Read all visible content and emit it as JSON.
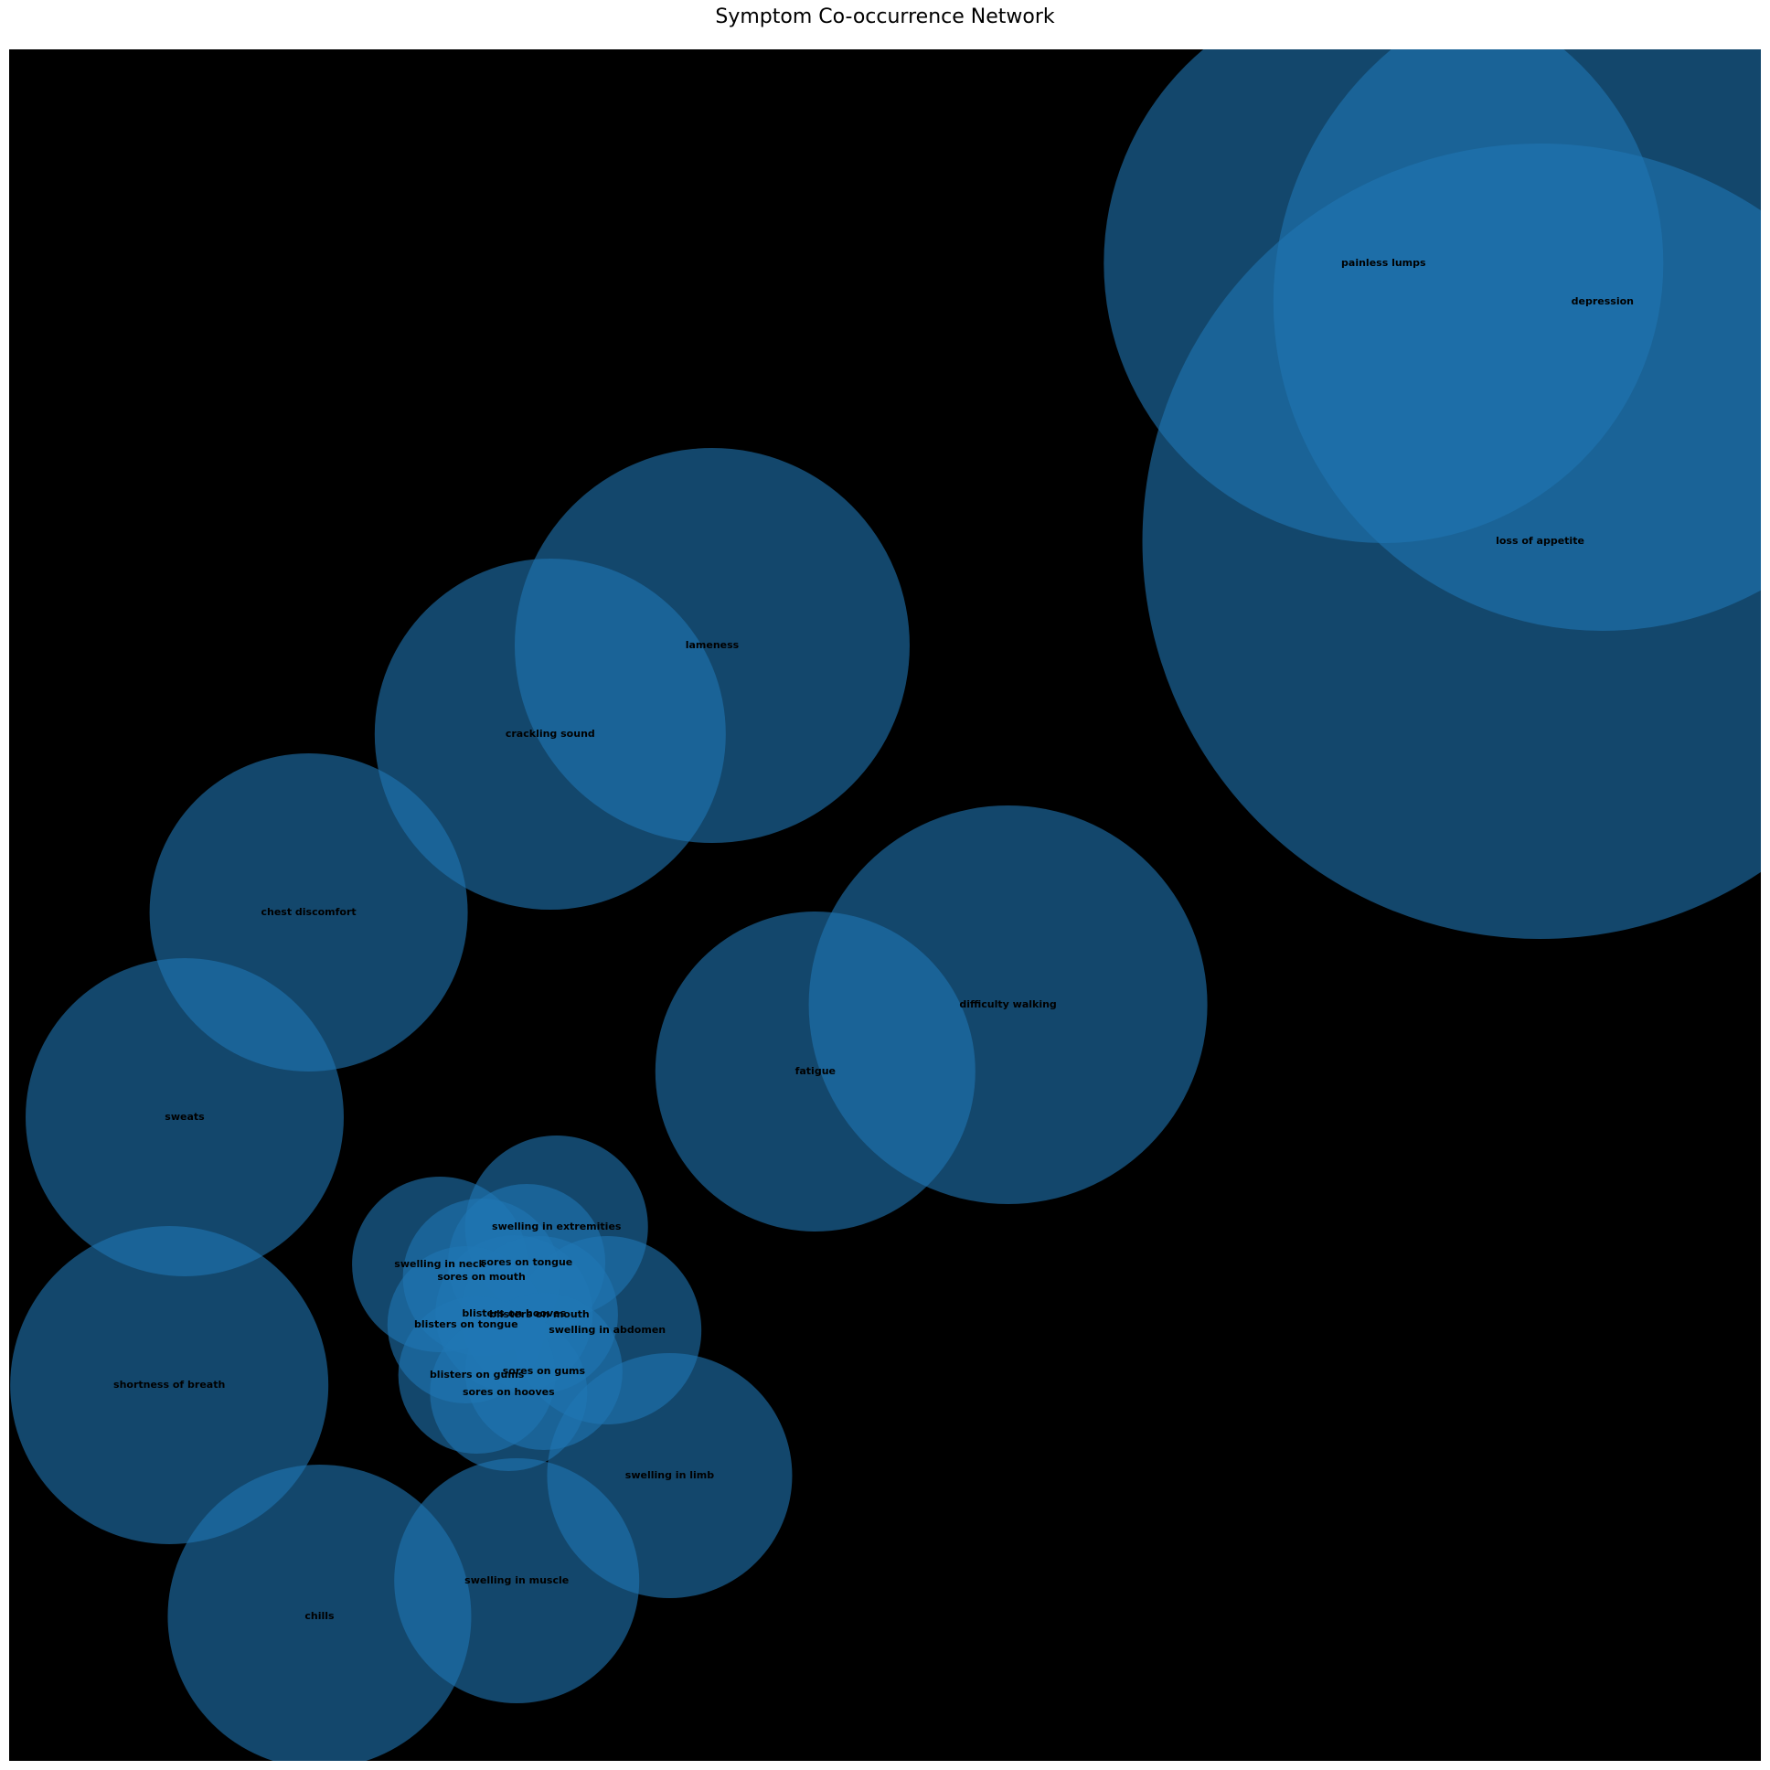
{
  "chart_data": {
    "type": "scatter",
    "title": "Symptom Co-occurrence Network",
    "xlabel": "",
    "ylabel": "",
    "xlim": [
      0,
      1936
    ],
    "ylim": [
      1926,
      54
    ],
    "axes_visible": false,
    "grid": false,
    "marker_color": "#1f77b4",
    "marker_alpha": 0.6,
    "background": "#000000",
    "points": [
      {
        "label": "painless lumps",
        "x": 1519,
        "y": 288,
        "size": 306
      },
      {
        "label": "depression",
        "x": 1761,
        "y": 330,
        "size": 360
      },
      {
        "label": "loss of appetite",
        "x": 1692,
        "y": 592,
        "size": 435
      },
      {
        "label": "lameness",
        "x": 777,
        "y": 706,
        "size": 216
      },
      {
        "label": "crackling sound",
        "x": 598,
        "y": 803,
        "size": 192
      },
      {
        "label": "chest discomfort",
        "x": 331,
        "y": 998,
        "size": 174
      },
      {
        "label": "difficulty walking",
        "x": 1104,
        "y": 1099,
        "size": 218
      },
      {
        "label": "fatigue",
        "x": 891,
        "y": 1172,
        "size": 175
      },
      {
        "label": "sweats",
        "x": 194,
        "y": 1222,
        "size": 174
      },
      {
        "label": "swelling in extremities",
        "x": 605,
        "y": 1342,
        "size": 100
      },
      {
        "label": "swelling in neck",
        "x": 476,
        "y": 1383,
        "size": 96
      },
      {
        "label": "sores on tongue",
        "x": 572,
        "y": 1381,
        "size": 86
      },
      {
        "label": "sores on mouth",
        "x": 522,
        "y": 1397,
        "size": 86
      },
      {
        "label": "blisters on hooves",
        "x": 558,
        "y": 1437,
        "size": 86
      },
      {
        "label": "blisters on mouth",
        "x": 586,
        "y": 1438,
        "size": 86
      },
      {
        "label": "swelling in abdomen",
        "x": 661,
        "y": 1455,
        "size": 103
      },
      {
        "label": "blisters on tongue",
        "x": 505,
        "y": 1449,
        "size": 86
      },
      {
        "label": "shortness of breath",
        "x": 177,
        "y": 1515,
        "size": 174
      },
      {
        "label": "sores on gums",
        "x": 591,
        "y": 1500,
        "size": 86
      },
      {
        "label": "blisters on gums",
        "x": 517,
        "y": 1504,
        "size": 86
      },
      {
        "label": "sores on hooves",
        "x": 552,
        "y": 1523,
        "size": 86
      },
      {
        "label": "swelling in limb",
        "x": 730,
        "y": 1614,
        "size": 134
      },
      {
        "label": "swelling in muscle",
        "x": 561,
        "y": 1729,
        "size": 134
      },
      {
        "label": "chills",
        "x": 343,
        "y": 1768,
        "size": 166
      }
    ]
  }
}
